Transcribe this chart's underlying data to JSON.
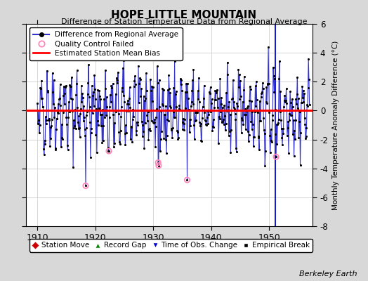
{
  "title": "HOPE LITTLE MOUNTAIN",
  "subtitle": "Difference of Station Temperature Data from Regional Average",
  "ylabel": "Monthly Temperature Anomaly Difference (°C)",
  "xlabel_years": [
    1910,
    1920,
    1930,
    1940,
    1950
  ],
  "xlim": [
    1908.0,
    1957.5
  ],
  "ylim": [
    -8,
    6
  ],
  "yticks": [
    -8,
    -6,
    -4,
    -2,
    0,
    2,
    4,
    6
  ],
  "bias_line": 0.0,
  "line_color": "#3333cc",
  "dot_color": "#000000",
  "bias_color": "#ff0000",
  "qc_color": "#ff88bb",
  "background_color": "#d8d8d8",
  "plot_bg_color": "#ffffff",
  "berkeley_earth_text": "Berkeley Earth",
  "seed": 42,
  "n_years": 47,
  "start_year": 1910,
  "qc_failed_indices": [
    100,
    148,
    250,
    251,
    310,
    494
  ],
  "obs_change_years": [
    1951.0
  ],
  "time_obs_color": "#0000cc",
  "station_move_color": "#cc0000",
  "record_gap_color": "#008800",
  "grid_color": "#c8c8c8"
}
